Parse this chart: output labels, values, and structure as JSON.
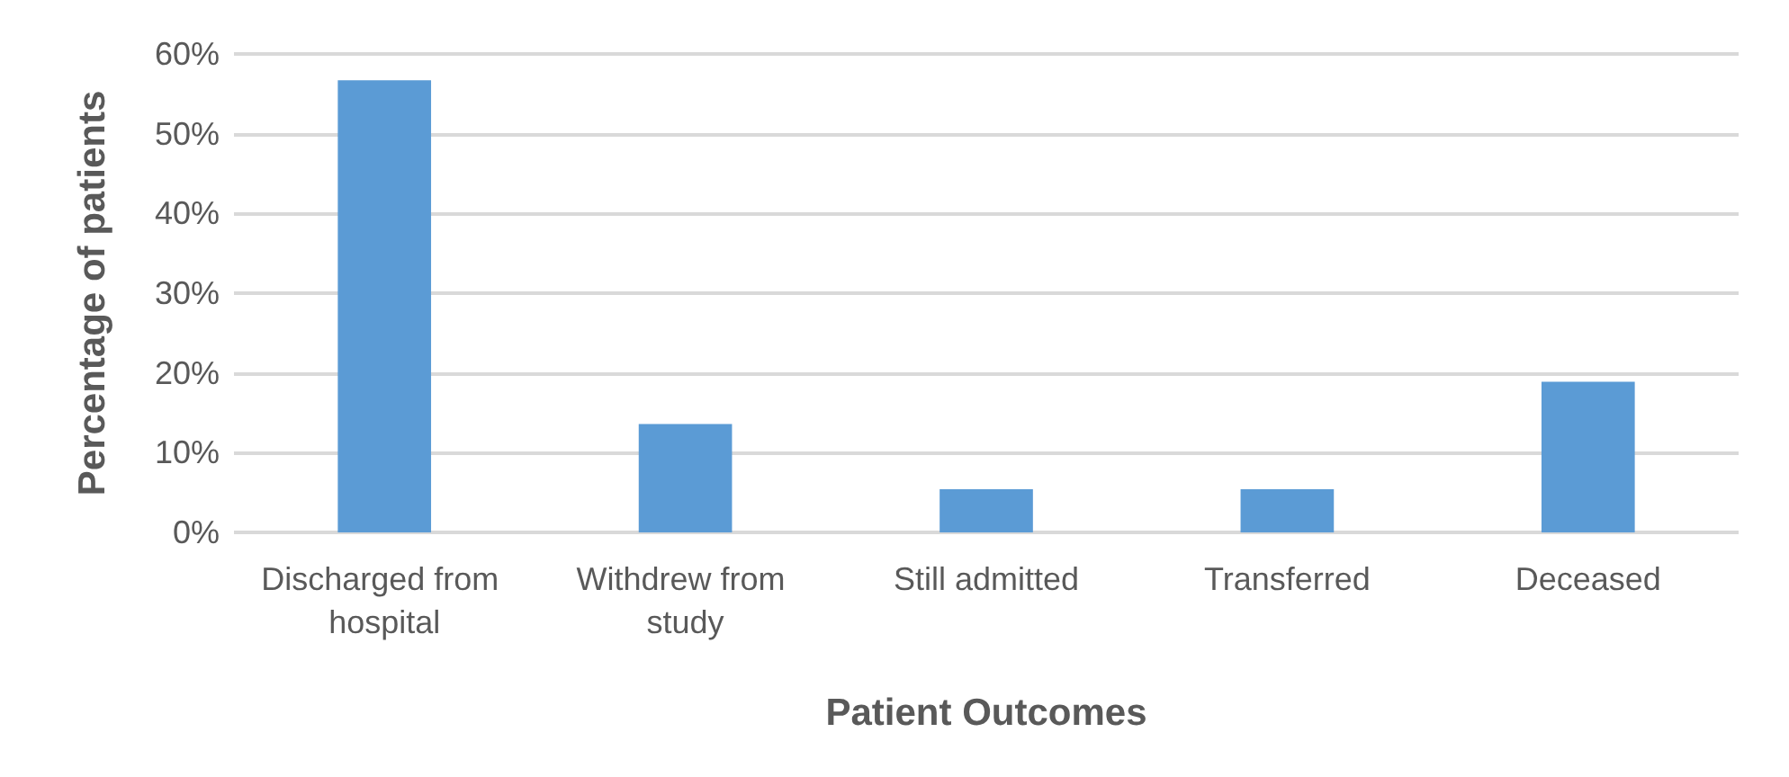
{
  "chart_data": {
    "type": "bar",
    "xlabel": "Patient Outcomes",
    "ylabel": "Percentage of patients",
    "categories": [
      "Discharged from hospital",
      "Withdrew from study",
      "Still admitted",
      "Transferred",
      "Deceased"
    ],
    "values": [
      56.7,
      13.6,
      5.4,
      5.4,
      18.9
    ],
    "color": "#5b9bd5",
    "ylim": [
      0,
      60
    ],
    "yticks": [
      {
        "value": 0,
        "label": "0%"
      },
      {
        "value": 10,
        "label": "10%"
      },
      {
        "value": 20,
        "label": "20%"
      },
      {
        "value": 30,
        "label": "30%"
      },
      {
        "value": 40,
        "label": "40%"
      },
      {
        "value": 50,
        "label": "50%"
      },
      {
        "value": 60,
        "label": "60%"
      }
    ],
    "grid": true
  }
}
